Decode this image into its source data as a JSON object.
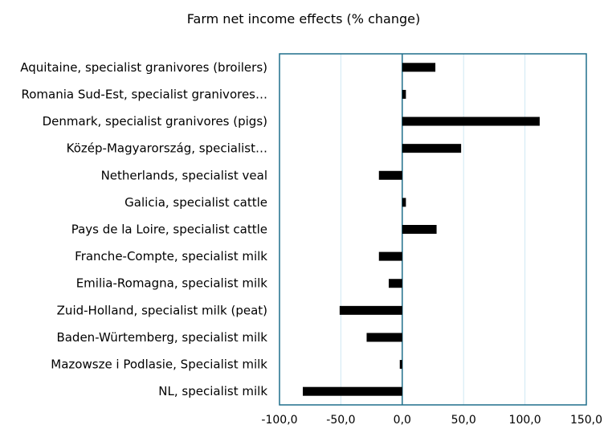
{
  "chart_data": {
    "type": "bar",
    "orientation": "horizontal",
    "title": "Farm net income effects (% change)",
    "xlabel": "",
    "ylabel": "",
    "categories": [
      "Aquitaine, specialist granivores (broilers)",
      "Romania Sud-Est, specialist granivores…",
      "Denmark, specialist granivores (pigs)",
      "Közép-Magyarország, specialist…",
      "Netherlands, specialist veal",
      "Galicia, specialist cattle",
      "Pays de la Loire, specialist cattle",
      "Franche-Compte, specialist milk",
      "Emilia-Romagna, specialist milk",
      "Zuid-Holland, specialist milk (peat)",
      "Baden-Würtemberg, specialist milk",
      "Mazowsze i Podlasie,  Specialist milk",
      "NL, specialist milk"
    ],
    "values": [
      27,
      3,
      112,
      48,
      -19,
      3,
      28,
      -19,
      -11,
      -51,
      -29,
      -2,
      -81
    ],
    "xlim": [
      -100,
      150
    ],
    "xticks": [
      -100,
      -50,
      0,
      50,
      100,
      150
    ],
    "xtick_labels": [
      "-100,0",
      "-50,0",
      "0,0",
      "50,0",
      "100,0",
      "150,0"
    ],
    "grid": true,
    "legend": "none",
    "colors": {
      "bar": "#000000",
      "frame": "#1f6f8b",
      "grid": "#cfe8f3",
      "zero_line": "#1f6f8b"
    }
  }
}
